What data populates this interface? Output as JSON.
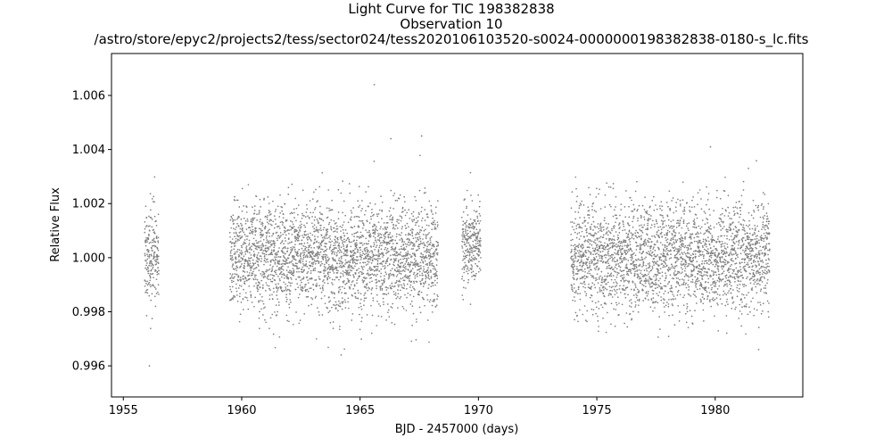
{
  "chart_data": {
    "type": "scatter",
    "title": "Light Curve for TIC 198382838",
    "subtitle": "Observation 10",
    "file_path": "/astro/store/epyc2/projects2/tess/sector024/tess2020106103520-s0024-0000000198382838-0180-s_lc.fits",
    "xlabel": "BJD - 2457000 (days)",
    "ylabel": "Relative Flux",
    "xlim": [
      1954.5,
      1983.7
    ],
    "ylim": [
      0.99485,
      1.00755
    ],
    "x_ticks": [
      1955,
      1960,
      1965,
      1970,
      1975,
      1980
    ],
    "x_tick_labels": [
      "1955",
      "1960",
      "1965",
      "1970",
      "1975",
      "1980"
    ],
    "y_ticks": [
      0.996,
      0.998,
      1.0,
      1.002,
      1.004,
      1.006
    ],
    "y_tick_labels": [
      "0.996",
      "0.998",
      "1.000",
      "1.002",
      "1.004",
      "1.006"
    ],
    "grid": false,
    "legend": "none",
    "point_color": "#808080",
    "segments": [
      {
        "x_start": 1955.9,
        "x_end": 1956.5,
        "median_flux": 1.0,
        "scatter": 0.0009
      },
      {
        "x_start": 1959.5,
        "x_end": 1968.3,
        "median_flux": 1.0,
        "scatter": 0.001
      },
      {
        "x_start": 1969.3,
        "x_end": 1970.1,
        "median_flux": 1.0005,
        "scatter": 0.0008
      },
      {
        "x_start": 1973.9,
        "x_end": 1982.3,
        "median_flux": 1.0,
        "scatter": 0.001
      }
    ],
    "outliers": [
      {
        "x": 1965.6,
        "y": 1.0064
      },
      {
        "x": 1956.1,
        "y": 0.996
      },
      {
        "x": 1964.2,
        "y": 0.9964
      },
      {
        "x": 1967.6,
        "y": 1.0045
      },
      {
        "x": 1979.8,
        "y": 1.0041
      },
      {
        "x": 1966.3,
        "y": 1.0044
      }
    ]
  }
}
